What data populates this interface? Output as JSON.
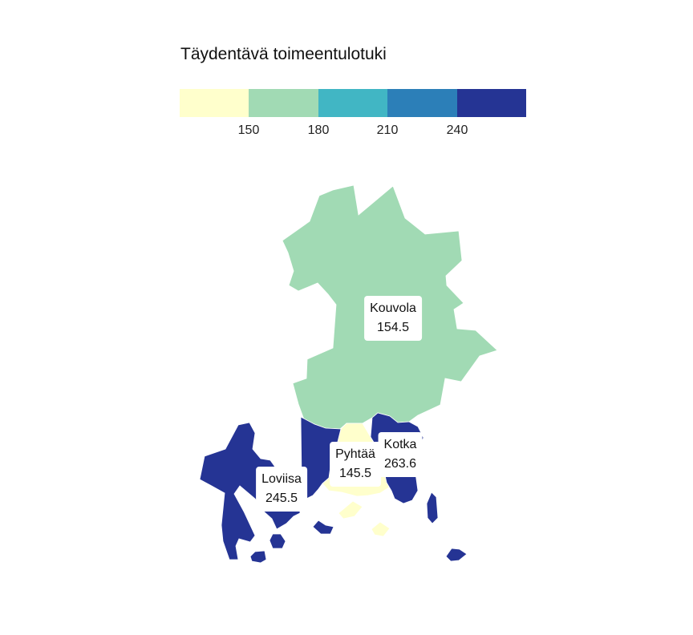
{
  "legend": {
    "title": "Täydentävä toimeentulotuki",
    "colors": [
      "#ffffcc",
      "#a1dab4",
      "#41b6c4",
      "#2c7fb8",
      "#253494"
    ],
    "breaks": [
      "150",
      "180",
      "210",
      "240"
    ]
  },
  "regions": [
    {
      "name": "Kouvola",
      "value": "154.5",
      "color": "#a1dab4"
    },
    {
      "name": "Kotka",
      "value": "263.6",
      "color": "#253494"
    },
    {
      "name": "Pyhtää",
      "value": "145.5",
      "color": "#ffffcc"
    },
    {
      "name": "Loviisa",
      "value": "245.5",
      "color": "#253494"
    }
  ]
}
